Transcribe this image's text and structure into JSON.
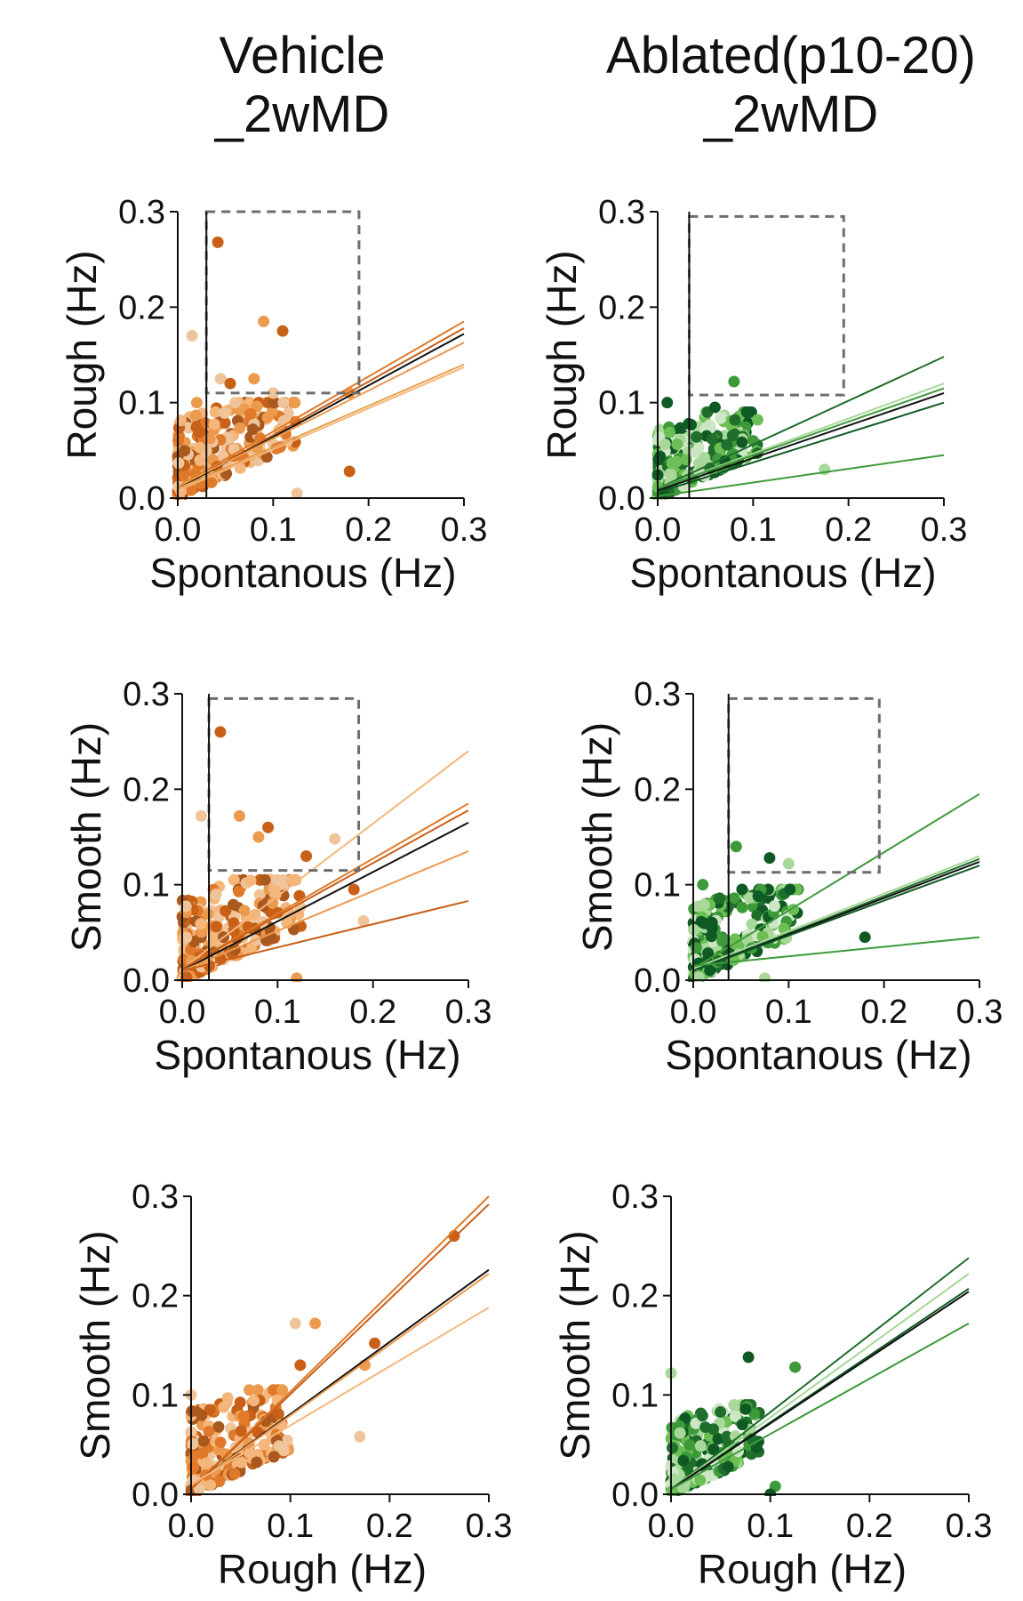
{
  "columns": [
    {
      "line1": "Vehicle",
      "line2": "_2wMD"
    },
    {
      "line1": "Ablated(p10-20)",
      "line2": "_2wMD"
    }
  ],
  "colors": {
    "vehicle_palette": [
      "#f4b67a",
      "#ec9a4e",
      "#e07a2a",
      "#c86018",
      "#a9581e",
      "#f0c49a"
    ],
    "ablated_palette": [
      "#cde6c4",
      "#a8d89a",
      "#6cbf55",
      "#3d9a3a",
      "#1f6e2c",
      "#0f5a24"
    ],
    "box": "#6e6e6e",
    "axis": "#111111",
    "mean_line": "#111111"
  },
  "chart_data": [
    {
      "id": "vehicle-rough-vs-spont",
      "type": "scatter",
      "group": "vehicle",
      "xlabel": "Spontanous (Hz)",
      "ylabel": "Rough (Hz)",
      "xlim": [
        0,
        0.3
      ],
      "ylim": [
        0,
        0.3
      ],
      "x_ticks": [
        "0.0",
        "0.1",
        "0.2",
        "0.3"
      ],
      "y_ticks": [
        "0.0",
        "0.1",
        "0.2",
        "0.3"
      ],
      "threshold_box": {
        "x": [
          0.03,
          0.19
        ],
        "y": [
          0.11,
          0.3
        ]
      },
      "vline_x": 0.03,
      "fit_lines": [
        {
          "x": [
            0,
            0.3
          ],
          "y": [
            0.012,
            0.185
          ],
          "color": "#e07a2a"
        },
        {
          "x": [
            0,
            0.3
          ],
          "y": [
            0.01,
            0.178
          ],
          "color": "#c86018"
        },
        {
          "x": [
            0,
            0.3
          ],
          "y": [
            0.01,
            0.172
          ],
          "color": "#111111"
        },
        {
          "x": [
            0,
            0.3
          ],
          "y": [
            0.012,
            0.163
          ],
          "color": "#ec9a4e"
        },
        {
          "x": [
            0,
            0.3
          ],
          "y": [
            0.01,
            0.14
          ],
          "color": "#e8a050"
        },
        {
          "x": [
            0,
            0.3
          ],
          "y": [
            0.008,
            0.137
          ],
          "color": "#f4b67a"
        }
      ],
      "highlight_points": [
        {
          "x": 0.042,
          "y": 0.268
        },
        {
          "x": 0.015,
          "y": 0.17
        },
        {
          "x": 0.09,
          "y": 0.185
        },
        {
          "x": 0.11,
          "y": 0.175
        },
        {
          "x": 0.045,
          "y": 0.125
        },
        {
          "x": 0.08,
          "y": 0.125
        },
        {
          "x": 0.055,
          "y": 0.12
        },
        {
          "x": 0.1,
          "y": 0.11
        },
        {
          "x": 0.18,
          "y": 0.11
        },
        {
          "x": 0.18,
          "y": 0.028
        },
        {
          "x": 0.125,
          "y": 0.005
        },
        {
          "x": 0.02,
          "y": 0.1
        }
      ],
      "cluster": {
        "n": 230,
        "x_max": 0.125,
        "y_max": 0.1,
        "seed": 11
      }
    },
    {
      "id": "ablated-rough-vs-spont",
      "type": "scatter",
      "group": "ablated",
      "xlabel": "Spontanous (Hz)",
      "ylabel": "Rough (Hz)",
      "xlim": [
        0,
        0.3
      ],
      "ylim": [
        0,
        0.3
      ],
      "x_ticks": [
        "0.0",
        "0.1",
        "0.2",
        "0.3"
      ],
      "y_ticks": [
        "0.0",
        "0.1",
        "0.2",
        "0.3"
      ],
      "threshold_box": {
        "x": [
          0.033,
          0.195
        ],
        "y": [
          0.108,
          0.295
        ]
      },
      "vline_x": 0.033,
      "fit_lines": [
        {
          "x": [
            0,
            0.3
          ],
          "y": [
            0.01,
            0.148
          ],
          "color": "#1f6e2c"
        },
        {
          "x": [
            0,
            0.3
          ],
          "y": [
            0.01,
            0.12
          ],
          "color": "#a8d89a"
        },
        {
          "x": [
            0,
            0.3
          ],
          "y": [
            0.01,
            0.115
          ],
          "color": "#3d9a3a"
        },
        {
          "x": [
            0,
            0.3
          ],
          "y": [
            0.008,
            0.11
          ],
          "color": "#111111"
        },
        {
          "x": [
            0,
            0.3
          ],
          "y": [
            0.006,
            0.1
          ],
          "color": "#0f5a24"
        },
        {
          "x": [
            0,
            0.3
          ],
          "y": [
            0.002,
            0.045
          ],
          "color": "#3d9a3a"
        }
      ],
      "highlight_points": [
        {
          "x": 0.08,
          "y": 0.122
        },
        {
          "x": 0.01,
          "y": 0.1
        },
        {
          "x": 0.175,
          "y": 0.03
        },
        {
          "x": 0.1,
          "y": 0.06
        },
        {
          "x": 0.06,
          "y": 0.095
        }
      ],
      "cluster": {
        "n": 230,
        "x_max": 0.105,
        "y_max": 0.09,
        "seed": 23
      }
    },
    {
      "id": "vehicle-smooth-vs-spont",
      "type": "scatter",
      "group": "vehicle",
      "xlabel": "Spontanous (Hz)",
      "ylabel": "Smooth (Hz)",
      "xlim": [
        0,
        0.3
      ],
      "ylim": [
        0,
        0.3
      ],
      "x_ticks": [
        "0.0",
        "0.1",
        "0.2",
        "0.3"
      ],
      "y_ticks": [
        "0.0",
        "0.1",
        "0.2",
        "0.3"
      ],
      "threshold_box": {
        "x": [
          0.028,
          0.185
        ],
        "y": [
          0.115,
          0.295
        ]
      },
      "vline_x": 0.028,
      "fit_lines": [
        {
          "x": [
            0,
            0.3
          ],
          "y": [
            0.012,
            0.24
          ],
          "color": "#f4b67a"
        },
        {
          "x": [
            0,
            0.3
          ],
          "y": [
            0.012,
            0.185
          ],
          "color": "#e07a2a"
        },
        {
          "x": [
            0,
            0.3
          ],
          "y": [
            0.012,
            0.178
          ],
          "color": "#c86018"
        },
        {
          "x": [
            0,
            0.3
          ],
          "y": [
            0.01,
            0.165
          ],
          "color": "#111111"
        },
        {
          "x": [
            0,
            0.3
          ],
          "y": [
            0.01,
            0.135
          ],
          "color": "#ec9a4e"
        },
        {
          "x": [
            0,
            0.3
          ],
          "y": [
            0.01,
            0.083
          ],
          "color": "#c86018"
        }
      ],
      "highlight_points": [
        {
          "x": 0.04,
          "y": 0.26
        },
        {
          "x": 0.02,
          "y": 0.172
        },
        {
          "x": 0.06,
          "y": 0.172
        },
        {
          "x": 0.09,
          "y": 0.16
        },
        {
          "x": 0.16,
          "y": 0.148
        },
        {
          "x": 0.08,
          "y": 0.15
        },
        {
          "x": 0.18,
          "y": 0.095
        },
        {
          "x": 0.19,
          "y": 0.062
        },
        {
          "x": 0.12,
          "y": 0.002
        },
        {
          "x": 0.13,
          "y": 0.13
        }
      ],
      "cluster": {
        "n": 230,
        "x_max": 0.125,
        "y_max": 0.105,
        "seed": 37
      }
    },
    {
      "id": "ablated-smooth-vs-spont",
      "type": "scatter",
      "group": "ablated",
      "xlabel": "Spontanous (Hz)",
      "ylabel": "Smooth (Hz)",
      "xlim": [
        0,
        0.3
      ],
      "ylim": [
        0,
        0.3
      ],
      "x_ticks": [
        "0.0",
        "0.1",
        "0.2",
        "0.3"
      ],
      "y_ticks": [
        "0.0",
        "0.1",
        "0.2",
        "0.3"
      ],
      "threshold_box": {
        "x": [
          0.037,
          0.195
        ],
        "y": [
          0.113,
          0.295
        ]
      },
      "vline_x": 0.037,
      "fit_lines": [
        {
          "x": [
            0,
            0.3
          ],
          "y": [
            0.012,
            0.195
          ],
          "color": "#3d9a3a"
        },
        {
          "x": [
            0,
            0.3
          ],
          "y": [
            0.012,
            0.13
          ],
          "color": "#a8d89a"
        },
        {
          "x": [
            0,
            0.3
          ],
          "y": [
            0.01,
            0.127
          ],
          "color": "#1f6e2c"
        },
        {
          "x": [
            0,
            0.3
          ],
          "y": [
            0.01,
            0.124
          ],
          "color": "#111111"
        },
        {
          "x": [
            0,
            0.3
          ],
          "y": [
            0.01,
            0.12
          ],
          "color": "#0f5a24"
        },
        {
          "x": [
            0,
            0.3
          ],
          "y": [
            0.015,
            0.045
          ],
          "color": "#3d9a3a"
        }
      ],
      "highlight_points": [
        {
          "x": 0.045,
          "y": 0.14
        },
        {
          "x": 0.08,
          "y": 0.128
        },
        {
          "x": 0.1,
          "y": 0.122
        },
        {
          "x": 0.01,
          "y": 0.1
        },
        {
          "x": 0.18,
          "y": 0.045
        },
        {
          "x": 0.075,
          "y": 0.002
        }
      ],
      "cluster": {
        "n": 230,
        "x_max": 0.11,
        "y_max": 0.095,
        "seed": 51
      }
    },
    {
      "id": "vehicle-smooth-vs-rough",
      "type": "scatter",
      "group": "vehicle",
      "xlabel": "Rough (Hz)",
      "ylabel": "Smooth (Hz)",
      "xlim": [
        0,
        0.3
      ],
      "ylim": [
        0,
        0.3
      ],
      "x_ticks": [
        "0.0",
        "0.1",
        "0.2",
        "0.3"
      ],
      "y_ticks": [
        "0.0",
        "0.1",
        "0.2",
        "0.3"
      ],
      "fit_lines": [
        {
          "x": [
            0,
            0.3
          ],
          "y": [
            0.005,
            0.3
          ],
          "color": "#e07a2a"
        },
        {
          "x": [
            0,
            0.3
          ],
          "y": [
            0.005,
            0.292
          ],
          "color": "#c86018"
        },
        {
          "x": [
            0,
            0.3
          ],
          "y": [
            0.008,
            0.226
          ],
          "color": "#111111"
        },
        {
          "x": [
            0,
            0.3
          ],
          "y": [
            0.008,
            0.222
          ],
          "color": "#ec9a4e"
        },
        {
          "x": [
            0,
            0.3
          ],
          "y": [
            0.01,
            0.188
          ],
          "color": "#f4b67a"
        }
      ],
      "highlight_points": [
        {
          "x": 0.265,
          "y": 0.26
        },
        {
          "x": 0.105,
          "y": 0.172
        },
        {
          "x": 0.125,
          "y": 0.172
        },
        {
          "x": 0.185,
          "y": 0.152
        },
        {
          "x": 0.17,
          "y": 0.058
        },
        {
          "x": 0.175,
          "y": 0.13
        },
        {
          "x": 0.11,
          "y": 0.13
        },
        {
          "x": 0.0,
          "y": 0.1
        }
      ],
      "cluster": {
        "n": 230,
        "x_max": 0.1,
        "y_max": 0.105,
        "seed": 67
      }
    },
    {
      "id": "ablated-smooth-vs-rough",
      "type": "scatter",
      "group": "ablated",
      "xlabel": "Rough (Hz)",
      "ylabel": "Smooth (Hz)",
      "xlim": [
        0,
        0.3
      ],
      "ylim": [
        0,
        0.3
      ],
      "x_ticks": [
        "0.0",
        "0.1",
        "0.2",
        "0.3"
      ],
      "y_ticks": [
        "0.0",
        "0.1",
        "0.2",
        "0.3"
      ],
      "fit_lines": [
        {
          "x": [
            0,
            0.3
          ],
          "y": [
            0.005,
            0.238
          ],
          "color": "#1f6e2c"
        },
        {
          "x": [
            0,
            0.3
          ],
          "y": [
            0.005,
            0.222
          ],
          "color": "#a8d89a"
        },
        {
          "x": [
            0,
            0.3
          ],
          "y": [
            0.005,
            0.207
          ],
          "color": "#0f5a24"
        },
        {
          "x": [
            0,
            0.3
          ],
          "y": [
            0.005,
            0.204
          ],
          "color": "#111111"
        },
        {
          "x": [
            0,
            0.3
          ],
          "y": [
            0.005,
            0.172
          ],
          "color": "#3d9a3a"
        }
      ],
      "highlight_points": [
        {
          "x": 0.125,
          "y": 0.128
        },
        {
          "x": 0.078,
          "y": 0.138
        },
        {
          "x": 0.0,
          "y": 0.122
        },
        {
          "x": 0.105,
          "y": 0.008
        },
        {
          "x": 0.1,
          "y": 0.0
        }
      ],
      "cluster": {
        "n": 230,
        "x_max": 0.09,
        "y_max": 0.09,
        "seed": 79
      }
    }
  ]
}
